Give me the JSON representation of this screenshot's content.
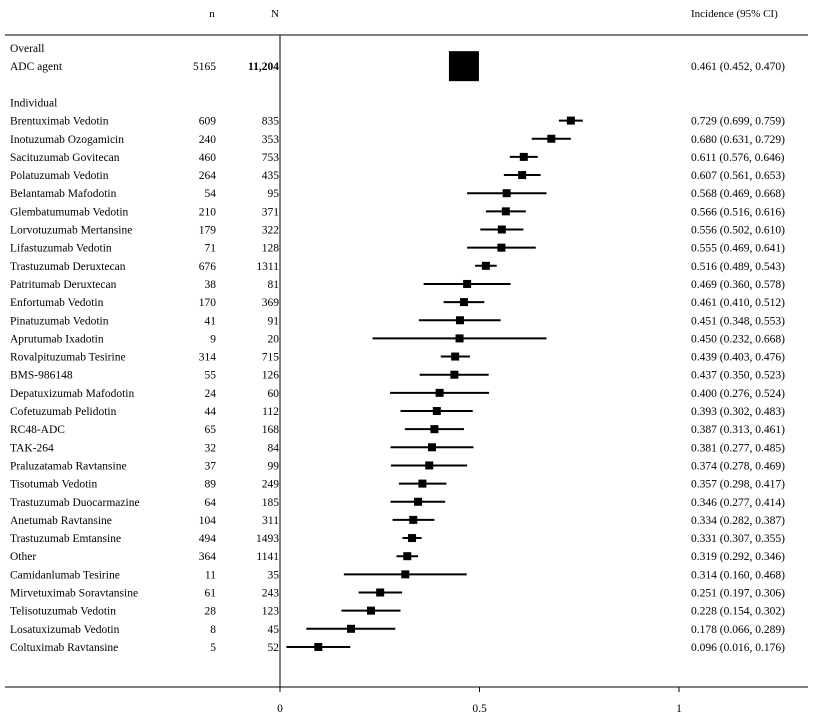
{
  "chart_data": {
    "type": "forest",
    "columns": {
      "n": "n",
      "N": "N",
      "incidence": "Incidence (95% CI)"
    },
    "axis": {
      "min": 0,
      "max": 1,
      "ticks": [
        0,
        0.5,
        1
      ],
      "tick_labels": [
        "0",
        "0.5",
        "1"
      ]
    },
    "sections": [
      {
        "heading": "Overall",
        "rows": [
          {
            "label": "ADC agent",
            "n": "5165",
            "N": "11,204",
            "est": 0.461,
            "lo": 0.452,
            "hi": 0.47,
            "ci_text": "0.461 (0.452, 0.470)",
            "overall": true
          }
        ]
      },
      {
        "heading": "Individual",
        "rows": [
          {
            "label": "Brentuximab Vedotin",
            "n": "609",
            "N": "835",
            "est": 0.729,
            "lo": 0.699,
            "hi": 0.759,
            "ci_text": "0.729 (0.699, 0.759)"
          },
          {
            "label": "Inotuzumab Ozogamicin",
            "n": "240",
            "N": "353",
            "est": 0.68,
            "lo": 0.631,
            "hi": 0.729,
            "ci_text": "0.680 (0.631, 0.729)"
          },
          {
            "label": "Sacituzumab Govitecan",
            "n": "460",
            "N": "753",
            "est": 0.611,
            "lo": 0.576,
            "hi": 0.646,
            "ci_text": "0.611 (0.576, 0.646)"
          },
          {
            "label": "Polatuzumab Vedotin",
            "n": "264",
            "N": "435",
            "est": 0.607,
            "lo": 0.561,
            "hi": 0.653,
            "ci_text": "0.607 (0.561, 0.653)"
          },
          {
            "label": "Belantamab Mafodotin",
            "n": "54",
            "N": "95",
            "est": 0.568,
            "lo": 0.469,
            "hi": 0.668,
            "ci_text": "0.568 (0.469, 0.668)"
          },
          {
            "label": "Glembatumumab Vedotin",
            "n": "210",
            "N": "371",
            "est": 0.566,
            "lo": 0.516,
            "hi": 0.616,
            "ci_text": "0.566 (0.516, 0.616)"
          },
          {
            "label": "Lorvotuzumab Mertansine",
            "n": "179",
            "N": "322",
            "est": 0.556,
            "lo": 0.502,
            "hi": 0.61,
            "ci_text": "0.556 (0.502, 0.610)"
          },
          {
            "label": "Lifastuzumab Vedotin",
            "n": "71",
            "N": "128",
            "est": 0.555,
            "lo": 0.469,
            "hi": 0.641,
            "ci_text": "0.555 (0.469, 0.641)"
          },
          {
            "label": "Trastuzumab Deruxtecan",
            "n": "676",
            "N": "1311",
            "est": 0.516,
            "lo": 0.489,
            "hi": 0.543,
            "ci_text": "0.516 (0.489, 0.543)"
          },
          {
            "label": "Patritumab Deruxtecan",
            "n": "38",
            "N": "81",
            "est": 0.469,
            "lo": 0.36,
            "hi": 0.578,
            "ci_text": "0.469 (0.360, 0.578)"
          },
          {
            "label": "Enfortumab Vedotin",
            "n": "170",
            "N": "369",
            "est": 0.461,
            "lo": 0.41,
            "hi": 0.512,
            "ci_text": "0.461 (0.410, 0.512)"
          },
          {
            "label": "Pinatuzumab Vedotin",
            "n": "41",
            "N": "91",
            "est": 0.451,
            "lo": 0.348,
            "hi": 0.553,
            "ci_text": "0.451 (0.348, 0.553)"
          },
          {
            "label": "Aprutumab Ixadotin",
            "n": "9",
            "N": "20",
            "est": 0.45,
            "lo": 0.232,
            "hi": 0.668,
            "ci_text": "0.450 (0.232, 0.668)"
          },
          {
            "label": "Rovalpituzumab Tesirine",
            "n": "314",
            "N": "715",
            "est": 0.439,
            "lo": 0.403,
            "hi": 0.476,
            "ci_text": "0.439 (0.403, 0.476)"
          },
          {
            "label": "BMS-986148",
            "n": "55",
            "N": "126",
            "est": 0.437,
            "lo": 0.35,
            "hi": 0.523,
            "ci_text": "0.437 (0.350, 0.523)"
          },
          {
            "label": "Depatuxizumab Mafodotin",
            "n": "24",
            "N": "60",
            "est": 0.4,
            "lo": 0.276,
            "hi": 0.524,
            "ci_text": "0.400 (0.276, 0.524)"
          },
          {
            "label": "Cofetuzumab Pelidotin",
            "n": "44",
            "N": "112",
            "est": 0.393,
            "lo": 0.302,
            "hi": 0.483,
            "ci_text": "0.393 (0.302, 0.483)"
          },
          {
            "label": "RC48-ADC",
            "n": "65",
            "N": "168",
            "est": 0.387,
            "lo": 0.313,
            "hi": 0.461,
            "ci_text": "0.387 (0.313, 0.461)"
          },
          {
            "label": "TAK-264",
            "n": "32",
            "N": "84",
            "est": 0.381,
            "lo": 0.277,
            "hi": 0.485,
            "ci_text": "0.381 (0.277, 0.485)"
          },
          {
            "label": "Praluzatamab Ravtansine",
            "n": "37",
            "N": "99",
            "est": 0.374,
            "lo": 0.278,
            "hi": 0.469,
            "ci_text": "0.374 (0.278, 0.469)"
          },
          {
            "label": "Tisotumab Vedotin",
            "n": "89",
            "N": "249",
            "est": 0.357,
            "lo": 0.298,
            "hi": 0.417,
            "ci_text": "0.357 (0.298, 0.417)"
          },
          {
            "label": "Trastuzumab Duocarmazine",
            "n": "64",
            "N": "185",
            "est": 0.346,
            "lo": 0.277,
            "hi": 0.414,
            "ci_text": "0.346 (0.277, 0.414)"
          },
          {
            "label": "Anetumab Ravtansine",
            "n": "104",
            "N": "311",
            "est": 0.334,
            "lo": 0.282,
            "hi": 0.387,
            "ci_text": "0.334 (0.282, 0.387)"
          },
          {
            "label": "Trastuzumab Emtansine",
            "n": "494",
            "N": "1493",
            "est": 0.331,
            "lo": 0.307,
            "hi": 0.355,
            "ci_text": "0.331 (0.307, 0.355)"
          },
          {
            "label": "Other",
            "n": "364",
            "N": "1141",
            "est": 0.319,
            "lo": 0.292,
            "hi": 0.346,
            "ci_text": "0.319 (0.292, 0.346)"
          },
          {
            "label": "Camidanlumab Tesirine",
            "n": "11",
            "N": "35",
            "est": 0.314,
            "lo": 0.16,
            "hi": 0.468,
            "ci_text": "0.314 (0.160, 0.468)"
          },
          {
            "label": "Mirvetuximab Soravtansine",
            "n": "61",
            "N": "243",
            "est": 0.251,
            "lo": 0.197,
            "hi": 0.306,
            "ci_text": "0.251 (0.197, 0.306)"
          },
          {
            "label": "Telisotuzumab Vedotin",
            "n": "28",
            "N": "123",
            "est": 0.228,
            "lo": 0.154,
            "hi": 0.302,
            "ci_text": "0.228 (0.154, 0.302)"
          },
          {
            "label": "Losatuxizumab Vedotin",
            "n": "8",
            "N": "45",
            "est": 0.178,
            "lo": 0.066,
            "hi": 0.289,
            "ci_text": "0.178 (0.066, 0.289)"
          },
          {
            "label": "Coltuximab Ravtansine",
            "n": "5",
            "N": "52",
            "est": 0.096,
            "lo": 0.016,
            "hi": 0.176,
            "ci_text": "0.096 (0.016, 0.176)"
          }
        ]
      }
    ]
  }
}
